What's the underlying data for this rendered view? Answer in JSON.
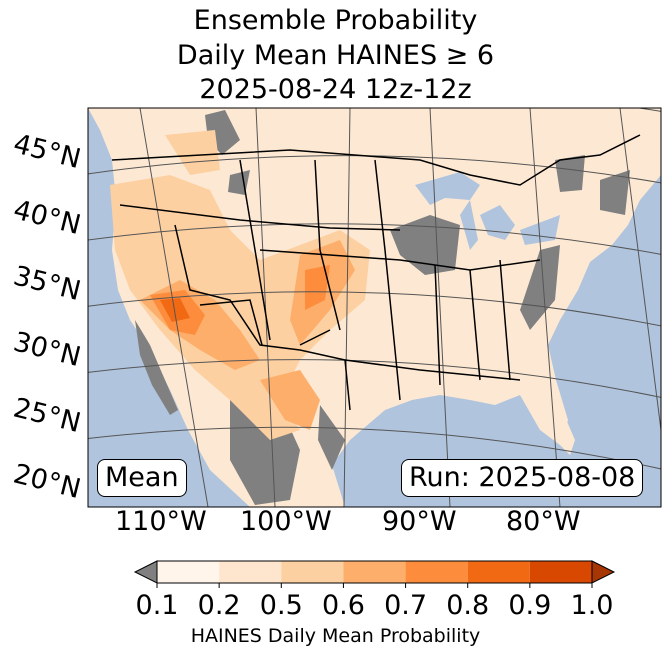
{
  "title": {
    "line1": "Ensemble Probability",
    "line2": "Daily Mean HAINES ≥ 6",
    "line3": "2025-08-24 12z-12z"
  },
  "map": {
    "latitude_labels": [
      "45°N",
      "40°N",
      "35°N",
      "30°N",
      "25°N",
      "20°N"
    ],
    "longitude_labels": [
      "110°W",
      "100°W",
      "90°W",
      "80°W"
    ],
    "stat_label": "Mean",
    "run_label": "Run: 2025-08-08",
    "colors": {
      "ocean": "#b0c4de",
      "missing": "#808080",
      "border": "#000000",
      "grid": "#555555"
    }
  },
  "colorbar": {
    "label": "HAINES Daily Mean Probability",
    "ticks": [
      "0.1",
      "0.2",
      "0.5",
      "0.6",
      "0.7",
      "0.8",
      "0.9",
      "1.0"
    ],
    "colors": [
      "#fff5eb",
      "#fee6ce",
      "#fdd0a2",
      "#fdae6b",
      "#fd8d3c",
      "#f16913",
      "#d94801",
      "#a63603"
    ],
    "under_color": "#808080"
  }
}
